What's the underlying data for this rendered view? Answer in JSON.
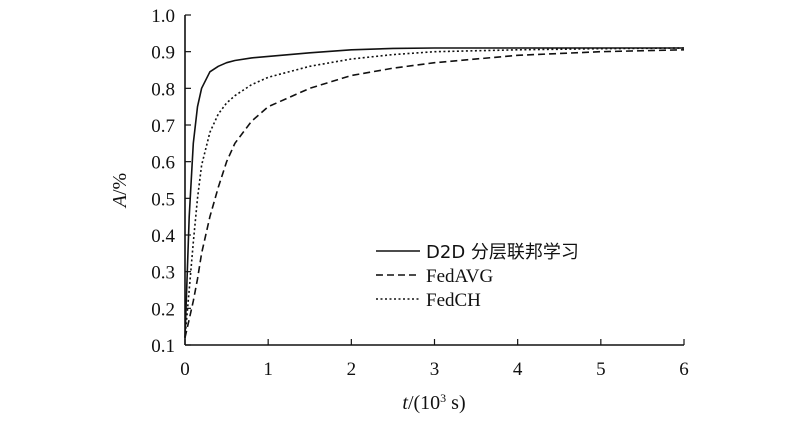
{
  "chart_data": {
    "type": "line",
    "xlabel_var": "t",
    "xlabel_unit_prefix": "/(10",
    "xlabel_unit_exp": "3",
    "xlabel_unit_suffix": " s)",
    "ylabel_var": "A",
    "ylabel_unit": "/%",
    "xlim": [
      0,
      6
    ],
    "ylim": [
      0.1,
      1.0
    ],
    "xticks": [
      "0",
      "1",
      "2",
      "3",
      "4",
      "5",
      "6"
    ],
    "yticks": [
      "0.1",
      "0.2",
      "0.3",
      "0.4",
      "0.5",
      "0.6",
      "0.7",
      "0.8",
      "0.9",
      "1.0"
    ],
    "legend_position": "center-right",
    "series": [
      {
        "name": "D2D 分层联邦学习",
        "style": "solid",
        "x": [
          0,
          0.05,
          0.1,
          0.15,
          0.2,
          0.3,
          0.4,
          0.5,
          0.6,
          0.8,
          1.0,
          1.5,
          2.0,
          2.5,
          3.0,
          4.0,
          5.0,
          6.0
        ],
        "y": [
          0.12,
          0.45,
          0.65,
          0.75,
          0.8,
          0.845,
          0.86,
          0.87,
          0.876,
          0.883,
          0.887,
          0.897,
          0.905,
          0.909,
          0.91,
          0.91,
          0.91,
          0.91
        ]
      },
      {
        "name": "FedAVG",
        "style": "dashed",
        "x": [
          0,
          0.05,
          0.1,
          0.15,
          0.2,
          0.3,
          0.4,
          0.5,
          0.6,
          0.8,
          1.0,
          1.5,
          2.0,
          2.5,
          3.0,
          4.0,
          5.0,
          6.0
        ],
        "y": [
          0.12,
          0.17,
          0.22,
          0.28,
          0.35,
          0.45,
          0.53,
          0.6,
          0.65,
          0.71,
          0.75,
          0.8,
          0.835,
          0.855,
          0.87,
          0.89,
          0.9,
          0.905
        ]
      },
      {
        "name": "FedCH",
        "style": "dotted",
        "x": [
          0,
          0.05,
          0.1,
          0.15,
          0.2,
          0.3,
          0.4,
          0.5,
          0.6,
          0.8,
          1.0,
          1.5,
          2.0,
          2.5,
          3.0,
          4.0,
          5.0,
          6.0
        ],
        "y": [
          0.12,
          0.25,
          0.38,
          0.5,
          0.59,
          0.68,
          0.73,
          0.76,
          0.78,
          0.81,
          0.83,
          0.86,
          0.88,
          0.892,
          0.9,
          0.905,
          0.908,
          0.91
        ]
      }
    ]
  }
}
